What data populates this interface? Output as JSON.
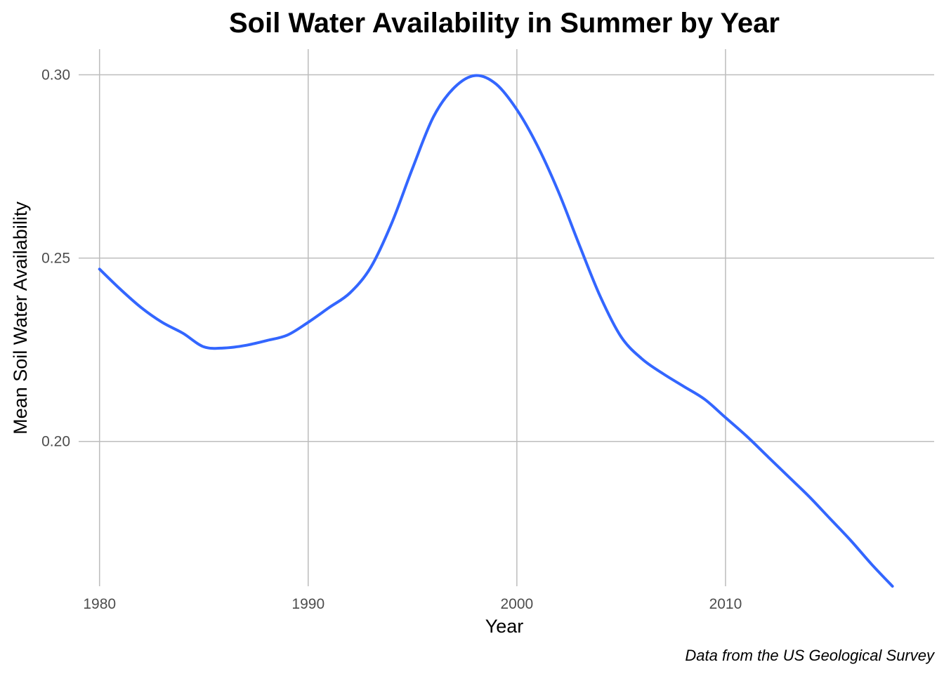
{
  "chart_data": {
    "type": "line",
    "title": "Soil Water Availability in Summer by Year",
    "xlabel": "Year",
    "ylabel": "Mean Soil Water Availability",
    "caption": "Data from the US Geological Survey",
    "xlim": [
      1979,
      2020
    ],
    "ylim": [
      0.1605,
      0.307
    ],
    "x_ticks": [
      1980,
      1990,
      2000,
      2010
    ],
    "y_ticks": [
      0.2,
      0.25,
      0.3
    ],
    "y_tick_labels": [
      "0.20",
      "0.25",
      "0.30"
    ],
    "grid": true,
    "line_color": "#3366ff",
    "series": [
      {
        "x": [
          1980,
          1981,
          1982,
          1983,
          1984,
          1985,
          1986,
          1987,
          1988,
          1989,
          1990,
          1991,
          1992,
          1993,
          1994,
          1995,
          1996,
          1997,
          1998,
          1999,
          2000,
          2001,
          2002,
          2003,
          2004,
          2005,
          2006,
          2007,
          2008,
          2009,
          2010,
          2011,
          2012,
          2013,
          2014,
          2015,
          2016,
          2017,
          2018
        ],
        "y": [
          0.247,
          0.2415,
          0.2365,
          0.2325,
          0.2295,
          0.2258,
          0.2255,
          0.2262,
          0.2275,
          0.229,
          0.2325,
          0.2365,
          0.2405,
          0.2475,
          0.2595,
          0.2745,
          0.2885,
          0.2965,
          0.2998,
          0.2975,
          0.2905,
          0.2805,
          0.268,
          0.2535,
          0.2395,
          0.2285,
          0.2225,
          0.2185,
          0.215,
          0.2115,
          0.2065,
          0.2015,
          0.196,
          0.1905,
          0.185,
          0.179,
          0.173,
          0.1665,
          0.1605
        ]
      }
    ]
  }
}
